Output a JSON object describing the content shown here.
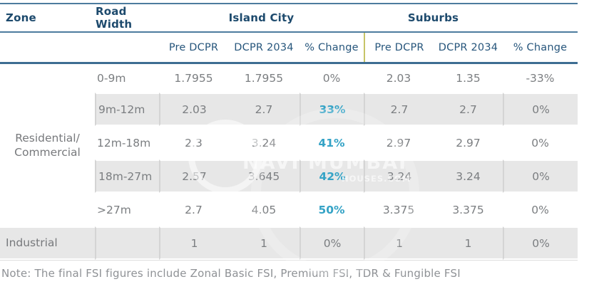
{
  "colors": {
    "header_text": "#1d4a6d",
    "rule_blue": "#4d7c9e",
    "rule_blue_dark": "#3d6d92",
    "divider_yellow": "#c6c468",
    "cell_text": "#7b7e81",
    "highlight_cyan": "#35a3c6",
    "row_shade": "#e7e7e7",
    "note_text": "#8f9296"
  },
  "table": {
    "header": {
      "zone": "Zone",
      "road_width": "Road Width",
      "island_city": "Island City",
      "suburbs": "Suburbs"
    },
    "subheaders": [
      "Pre DCPR",
      "DCPR 2034",
      "% Change",
      "Pre DCPR",
      "DCPR 2034",
      "% Change"
    ],
    "zone_groups": [
      {
        "label_lines": [
          "Residential/",
          "Commercial"
        ],
        "row_start": 1,
        "row_span": 5,
        "shaded": false
      },
      {
        "label_lines": [
          "Industrial"
        ],
        "row_start": 6,
        "row_span": 1,
        "shaded": true
      }
    ],
    "rows": [
      {
        "road": "0-9m",
        "values": [
          "1.7955",
          "1.7955",
          "0%",
          "2.03",
          "1.35",
          "-33%"
        ],
        "shaded": false,
        "highlight_cols": []
      },
      {
        "road": "9m-12m",
        "values": [
          "2.03",
          "2.7",
          "33%",
          "2.7",
          "2.7",
          "0%"
        ],
        "shaded": true,
        "highlight_cols": [
          2
        ]
      },
      {
        "road": "12m-18m",
        "values": [
          "2.3",
          "3.24",
          "41%",
          "2.97",
          "2.97",
          "0%"
        ],
        "shaded": false,
        "highlight_cols": [
          2
        ]
      },
      {
        "road": "18m-27m",
        "values": [
          "2.57",
          "3.645",
          "42%",
          "3.24",
          "3.24",
          "0%"
        ],
        "shaded": true,
        "highlight_cols": [
          2
        ]
      },
      {
        "road": ">27m",
        "values": [
          "2.7",
          "4.05",
          "50%",
          "3.375",
          "3.375",
          "0%"
        ],
        "shaded": false,
        "highlight_cols": [
          2
        ]
      },
      {
        "road": "",
        "values": [
          "1",
          "1",
          "0%",
          "1",
          "1",
          "0%"
        ],
        "shaded": true,
        "highlight_cols": []
      }
    ],
    "separator_value_cols": [
      0,
      2,
      3,
      5
    ]
  },
  "note": "Note: The final FSI figures include Zonal Basic FSI, Premium FSI, TDR & Fungible FSI",
  "watermark": {
    "line1": "NAVI MUMBAI",
    "line2": "HOUSES.COM"
  },
  "chart_data": {
    "type": "table",
    "title": "FSI comparison under DCPR 2034",
    "columns": [
      "Zone",
      "Road Width",
      "Island City Pre DCPR",
      "Island City DCPR 2034",
      "Island City % Change",
      "Suburbs Pre DCPR",
      "Suburbs DCPR 2034",
      "Suburbs % Change"
    ],
    "rows": [
      [
        "Residential/Commercial",
        "0-9m",
        1.7955,
        1.7955,
        "0%",
        2.03,
        1.35,
        "-33%"
      ],
      [
        "Residential/Commercial",
        "9m-12m",
        2.03,
        2.7,
        "33%",
        2.7,
        2.7,
        "0%"
      ],
      [
        "Residential/Commercial",
        "12m-18m",
        2.3,
        3.24,
        "41%",
        2.97,
        2.97,
        "0%"
      ],
      [
        "Residential/Commercial",
        "18m-27m",
        2.57,
        3.645,
        "42%",
        3.24,
        3.24,
        "0%"
      ],
      [
        "Residential/Commercial",
        ">27m",
        2.7,
        4.05,
        "50%",
        3.375,
        3.375,
        "0%"
      ],
      [
        "Industrial",
        "",
        1,
        1,
        "0%",
        1,
        1,
        "0%"
      ]
    ],
    "note": "Note: The final FSI figures include Zonal Basic FSI, Premium FSI, TDR & Fungible FSI"
  }
}
